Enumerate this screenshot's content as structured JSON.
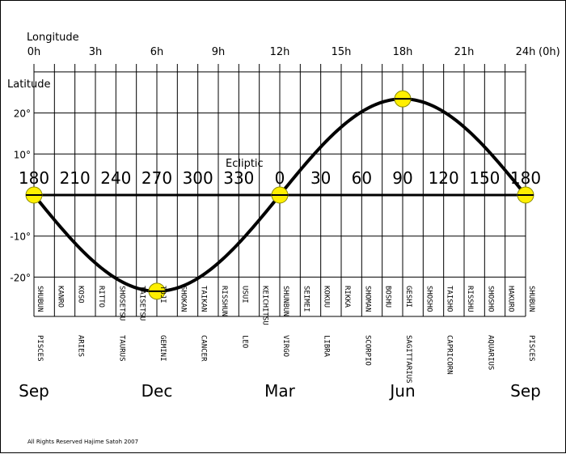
{
  "chart_data": {
    "type": "line",
    "longitude_label": "Longitude",
    "latitude_label": "Latitude",
    "ecliptic_label": "Ecliptic",
    "ra_ticks": [
      "0h",
      "3h",
      "6h",
      "9h",
      "12h",
      "15h",
      "18h",
      "21h",
      "24h"
    ],
    "ra_suffix": "(0h)",
    "lat_ticks": [
      {
        "value": 20,
        "label": "20°"
      },
      {
        "value": 10,
        "label": "10°"
      },
      {
        "value": -10,
        "label": "-10°"
      },
      {
        "value": -20,
        "label": "-20°"
      }
    ],
    "ecliptic_longitudes": [
      "180",
      "210",
      "240",
      "270",
      "300",
      "330",
      "0",
      "30",
      "60",
      "90",
      "120",
      "150",
      "180"
    ],
    "ra_range": [
      0,
      24
    ],
    "lat_range": [
      -27,
      32
    ],
    "ecliptic": {
      "ra": [
        0,
        24
      ],
      "lat": [
        0,
        0
      ]
    },
    "sun_path": {
      "obliquity_deg": 23.44,
      "ra_at_zero": 0,
      "ra_at_min": 6,
      "ra_at_max": 18
    },
    "markers": [
      {
        "ra": 0,
        "lat": 0
      },
      {
        "ra": 6,
        "lat": -23.44
      },
      {
        "ra": 12,
        "lat": 0
      },
      {
        "ra": 18,
        "lat": 23.44
      },
      {
        "ra": 24,
        "lat": 0
      }
    ],
    "solar_terms": [
      "SHUBUN",
      "KANRO",
      "KOSO",
      "RITTO",
      "SHOSETSU",
      "TAISETSU",
      "TOJI",
      "SHOKAN",
      "TAIKAN",
      "RISSHUN",
      "USUI",
      "KEICHITSU",
      "SHUNBUN",
      "SEIMEI",
      "KOKUU",
      "RIKKA",
      "SHOMAN",
      "BOSHU",
      "GESHI",
      "SHOSHO",
      "TAISHO",
      "RISSHU",
      "SHOSHO",
      "HAKURO",
      "SHUBUN"
    ],
    "zodiac_signs": [
      "PISCES",
      "ARIES",
      "TAURUS",
      "GEMINI",
      "CANCER",
      "LEO",
      "VIRGO",
      "LIBRA",
      "SCORPIO",
      "SAGITTARIUS",
      "CAPRICORN",
      "AQUARIUS",
      "PISCES"
    ],
    "months": [
      {
        "ra": 0,
        "label": "Sep"
      },
      {
        "ra": 6,
        "label": "Dec"
      },
      {
        "ra": 12,
        "label": "Mar"
      },
      {
        "ra": 18,
        "label": "Jun"
      },
      {
        "ra": 24,
        "label": "Sep"
      }
    ]
  },
  "footer": {
    "copyright": "All Rights Reserved  Hajime  Satoh 2007"
  },
  "colors": {
    "line": "#000000",
    "marker_fill": "#ffef00",
    "marker_stroke": "#8a8a00",
    "background": "#ffffff"
  }
}
